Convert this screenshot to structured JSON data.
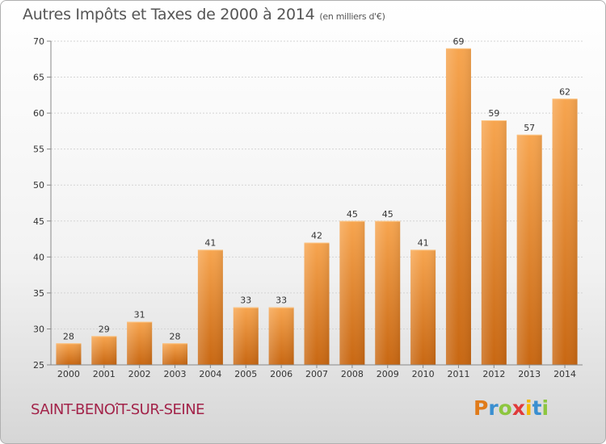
{
  "title": "Autres Impôts et Taxes de 2000 à 2014",
  "subtitle": "(en milliers d'€)",
  "commune": "SAINT-BENOîT-SUR-SEINE",
  "brand": {
    "letters": [
      "P",
      "r",
      "o",
      "x",
      "i",
      "t",
      "i"
    ],
    "colors": [
      "#e07b1a",
      "#3a8fd0",
      "#8dc63f",
      "#e03a3a",
      "#f2b800",
      "#3a8fd0",
      "#8dc63f"
    ]
  },
  "colors": {
    "bar_light": "#f7a54f",
    "bar_dark": "#c86712",
    "commune": "#a3244a"
  },
  "chart_data": {
    "type": "bar",
    "categories": [
      "2000",
      "2001",
      "2002",
      "2003",
      "2004",
      "2005",
      "2006",
      "2007",
      "2008",
      "2009",
      "2010",
      "2011",
      "2012",
      "2013",
      "2014"
    ],
    "values": [
      28,
      29,
      31,
      28,
      41,
      33,
      33,
      42,
      45,
      45,
      41,
      69,
      59,
      57,
      62
    ],
    "title": "Autres Impôts et Taxes de 2000 à 2014",
    "ylim": [
      25,
      70
    ],
    "yticks": [
      25,
      30,
      35,
      40,
      45,
      50,
      55,
      60,
      65,
      70
    ],
    "grid": true
  }
}
